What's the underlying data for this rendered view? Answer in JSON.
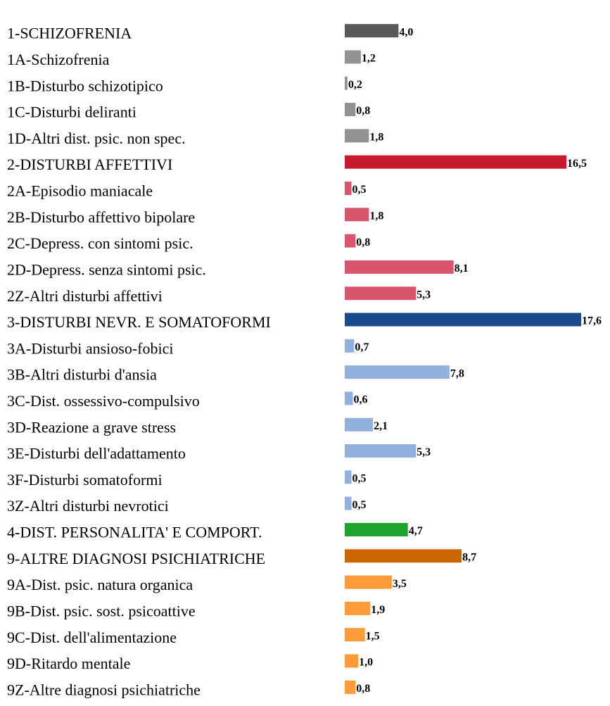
{
  "chart_data": {
    "type": "bar",
    "categories": [
      "1-SCHIZOFRENIA",
      "1A-Schizofrenia",
      "1B-Disturbo schizotipico",
      "1C-Disturbi deliranti",
      "1D-Altri dist. psic. non spec.",
      "2-DISTURBI AFFETTIVI",
      "2A-Episodio maniacale",
      "2B-Disturbo affettivo bipolare",
      "2C-Depress. con sintomi psic.",
      "2D-Depress. senza sintomi psic.",
      "2Z-Altri disturbi affettivi",
      "3-DISTURBI NEVR. E SOMATOFORMI",
      "3A-Disturbi ansioso-fobici",
      "3B-Altri disturbi d'ansia",
      "3C-Dist. ossessivo-compulsivo",
      "3D-Reazione a grave stress",
      "3E-Disturbi dell'adattamento",
      "3F-Disturbi somatoformi",
      "3Z-Altri disturbi nevrotici",
      "4-DIST. PERSONALITA' E COMPORT.",
      "9-ALTRE DIAGNOSI PSICHIATRICHE",
      "9A-Dist. psic. natura organica",
      "9B-Dist. psic. sost. psicoattive",
      "9C-Dist. dell'alimentazione",
      "9D-Ritardo mentale",
      "9Z-Altre diagnosi psichiatriche"
    ],
    "values": [
      4.0,
      1.2,
      0.2,
      0.8,
      1.8,
      16.5,
      0.5,
      1.8,
      0.8,
      8.1,
      5.3,
      17.6,
      0.7,
      7.8,
      0.6,
      2.1,
      5.3,
      0.5,
      0.5,
      4.7,
      8.7,
      3.5,
      1.9,
      1.5,
      1.0,
      0.8
    ],
    "value_labels": [
      "4,0",
      "1,2",
      "0,2",
      "0,8",
      "1,8",
      "16,5",
      "0,5",
      "1,8",
      "0,8",
      "8,1",
      "5,3",
      "17,6",
      "0,7",
      "7,8",
      "0,6",
      "2,1",
      "5,3",
      "0,5",
      "0,5",
      "4,7",
      "8,7",
      "3,5",
      "1,9",
      "1,5",
      "1,0",
      "0,8"
    ],
    "colors": [
      "#595959",
      "#929292",
      "#929292",
      "#929292",
      "#929292",
      "#c8192e",
      "#d9546d",
      "#d9546d",
      "#d9546d",
      "#d9546d",
      "#d9546d",
      "#1a4a8b",
      "#92b0dc",
      "#92b0dc",
      "#92b0dc",
      "#92b0dc",
      "#92b0dc",
      "#92b0dc",
      "#92b0dc",
      "#1fa32f",
      "#cc6600",
      "#ff9b38",
      "#ff9b38",
      "#ff9b38",
      "#ff9b38",
      "#ff9b38"
    ]
  }
}
